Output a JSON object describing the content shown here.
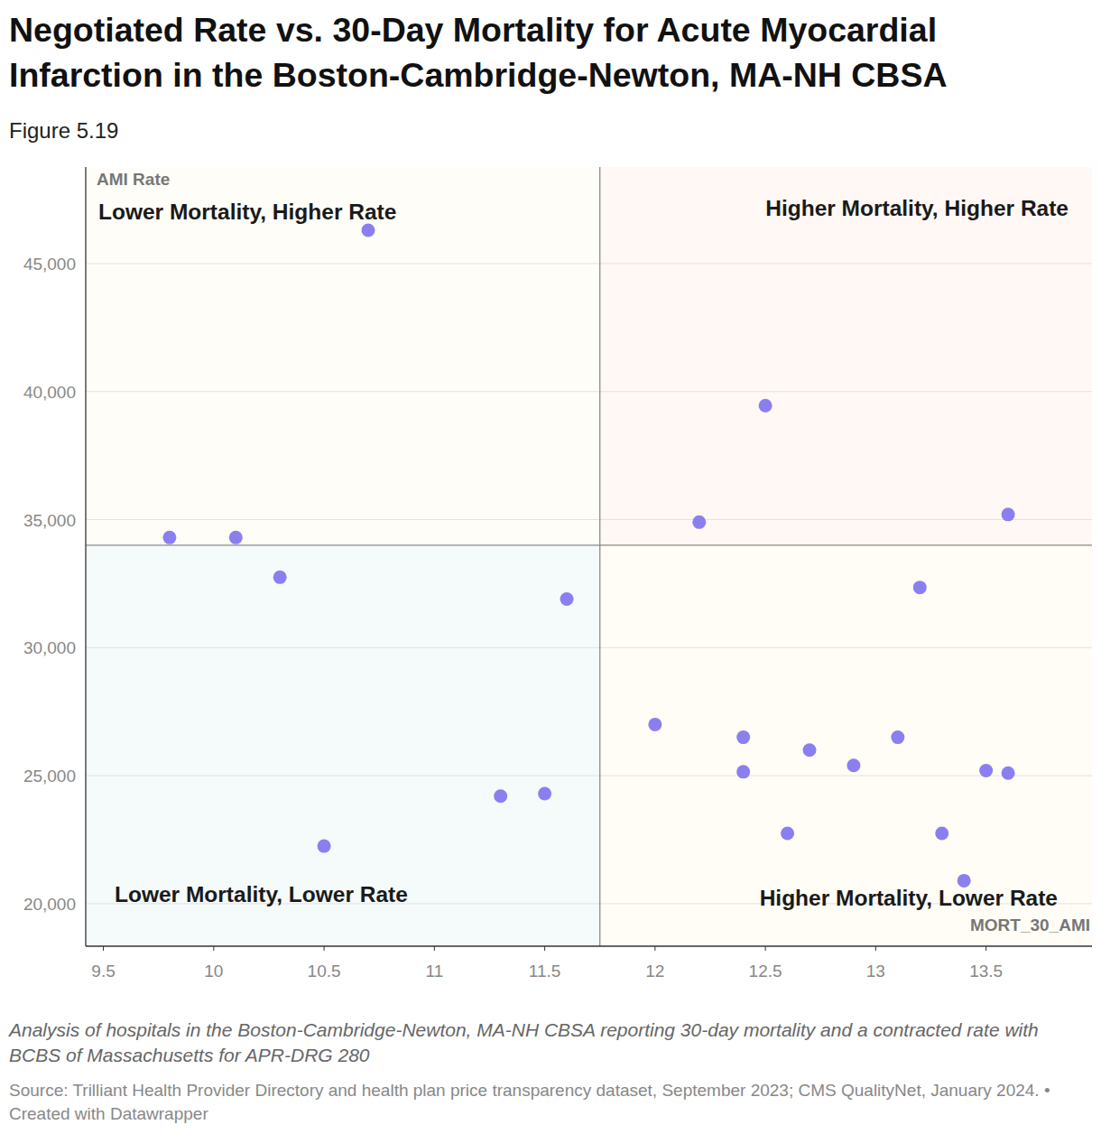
{
  "chart_data": {
    "type": "scatter",
    "title": "Negotiated Rate vs. 30-Day Mortality for Acute Myocardial Infarction in the Boston-Cambridge-Newton, MA-NH CBSA",
    "subtitle": "Figure 5.19",
    "x_label": "MORT_30_AMI",
    "y_label": "AMI Rate",
    "x": [
      9.8,
      10.1,
      10.3,
      10.5,
      10.7,
      11.3,
      11.5,
      11.6,
      12.0,
      12.2,
      12.4,
      12.4,
      12.5,
      12.6,
      12.7,
      12.9,
      13.1,
      13.2,
      13.3,
      13.4,
      13.5,
      13.6,
      13.6
    ],
    "values": [
      34300,
      34300,
      32750,
      22250,
      46300,
      24200,
      24300,
      31900,
      27000,
      34900,
      26500,
      25150,
      39450,
      22750,
      26000,
      25400,
      26500,
      32350,
      22750,
      20900,
      25200,
      25100,
      35200
    ],
    "color": "#8b7ff0",
    "xlim": [
      9.42,
      13.98
    ],
    "ylim": [
      18340,
      48770
    ],
    "xticks": [
      9.5,
      10,
      10.5,
      11,
      11.5,
      12,
      12.5,
      13,
      13.5
    ],
    "yticks": [
      {
        "value": 20000,
        "label": "20,000"
      },
      {
        "value": 25000,
        "label": "25,000"
      },
      {
        "value": 30000,
        "label": "30,000"
      },
      {
        "value": 35000,
        "label": "35,000"
      },
      {
        "value": 40000,
        "label": "40,000"
      },
      {
        "value": 45000,
        "label": "45,000"
      }
    ],
    "grid": true,
    "reference_lines": {
      "x": 11.75,
      "y": 34000
    },
    "annotations": [
      "Lower Mortality, Higher Rate",
      "Higher Mortality, Higher Rate",
      "Lower Mortality, Lower Rate",
      "Higher Mortality, Lower Rate"
    ],
    "note": "Analysis of hospitals in the Boston-Cambridge-Newton, MA-NH CBSA reporting 30-day mortality and a contracted rate with BCBS of Massachusetts for APR-DRG 280",
    "source": "Source: Trilliant Health Provider Directory and health plan price transparency dataset, September 2023; CMS QualityNet, January 2024. • Created with Datawrapper"
  }
}
